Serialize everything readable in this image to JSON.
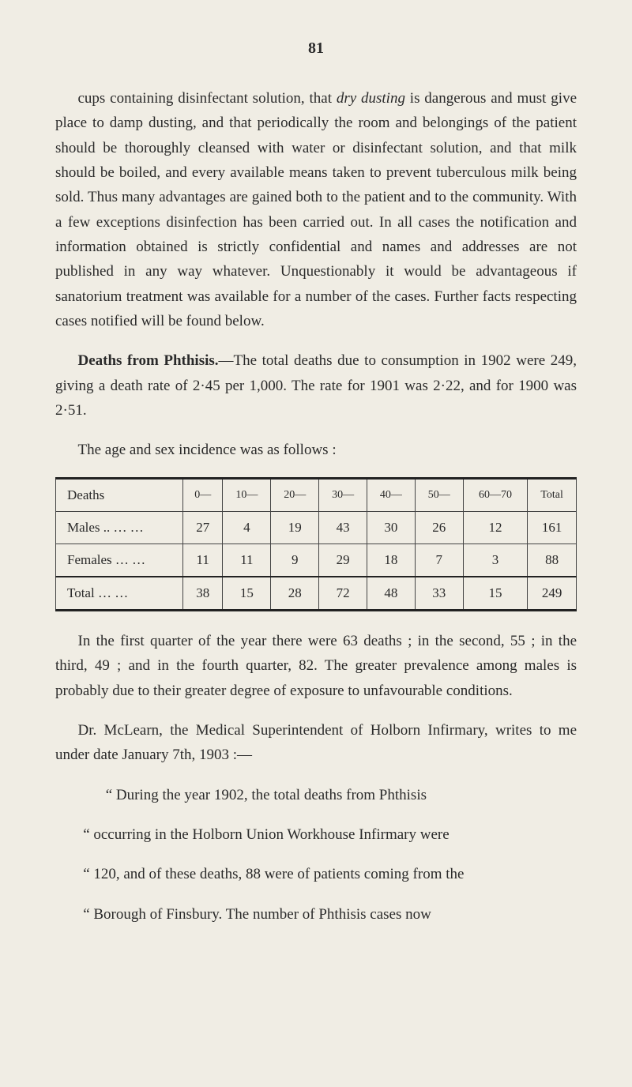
{
  "pageNumber": "81",
  "para1_a": "cups containing disinfectant solution, that ",
  "para1_italic": "dry dusting",
  "para1_b": " is dangerous and must give place to damp dusting, and that periodically the room and belongings of the patient should be thoroughly cleansed with water or disinfectant solution, and that milk should be boiled, and every available means taken to prevent tuberculous milk being sold. Thus many advantages are gained both to the patient and to the community. With a few exceptions disinfection has been carried out. In all cases the notification and information obtained is strictly confidential and names and addresses are not published in any way whatever. Unquestionably it would be advantageous if sanatorium treatment was available for a number of the cases. Further facts respecting cases notified will be found below.",
  "para2_lead": "Deaths from Phthisis.",
  "para2_rest": "—The total deaths due to consumption in 1902 were 249, giving a death rate of 2·45 per 1,000. The rate for 1901 was 2·22, and for 1900 was 2·51.",
  "para3": "The age and sex incidence was as follows :",
  "table": {
    "headers": [
      "Deaths",
      "0—",
      "10—",
      "20—",
      "30—",
      "40—",
      "50—",
      "60—70",
      "Total"
    ],
    "rows": [
      {
        "label": "Males ..    …    …",
        "cells": [
          "27",
          "4",
          "19",
          "43",
          "30",
          "26",
          "12",
          "161"
        ]
      },
      {
        "label": "Females      …    …",
        "cells": [
          "11",
          "11",
          "9",
          "29",
          "18",
          "7",
          "3",
          "88"
        ]
      }
    ],
    "total": {
      "label": "Total    …    …",
      "cells": [
        "38",
        "15",
        "28",
        "72",
        "48",
        "33",
        "15",
        "249"
      ]
    }
  },
  "para4": "In the first quarter of the year there were 63 deaths ; in the second, 55 ; in the third, 49 ; and in the fourth quarter, 82. The greater prevalence among males is probably due to their greater degree of exposure to unfavourable conditions.",
  "para5": "Dr. McLearn, the Medical Superintendent of Holborn Infirmary, writes to me under date January 7th, 1903 :—",
  "quote1": "“ During the year 1902, the total deaths from Phthisis",
  "quote2": "“ occurring in the Holborn Union Workhouse Infirmary were",
  "quote3": "“ 120, and of these deaths, 88 were of patients coming from the",
  "quote4": "“ Borough of Finsbury. The number of Phthisis cases now"
}
